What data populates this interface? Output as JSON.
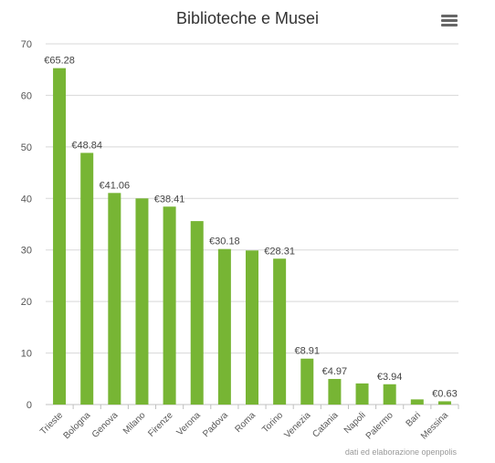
{
  "chart_data": {
    "type": "bar",
    "title": "Biblioteche e Musei",
    "categories": [
      "Trieste",
      "Bologna",
      "Genova",
      "Milano",
      "Firenze",
      "Verona",
      "Padova",
      "Roma",
      "Torino",
      "Venezia",
      "Catania",
      "Napoli",
      "Palermo",
      "Bari",
      "Messina"
    ],
    "values": [
      65.28,
      48.84,
      41.06,
      40.0,
      38.41,
      35.6,
      30.18,
      29.9,
      28.31,
      8.91,
      4.97,
      4.1,
      3.94,
      1.0,
      0.63
    ],
    "data_labels": [
      "€65.28",
      "€48.84",
      "€41.06",
      "",
      "€38.41",
      "",
      "€30.18",
      "",
      "€28.31",
      "€8.91",
      "€4.97",
      "",
      "€3.94",
      "",
      "€0.63"
    ],
    "y_ticks": [
      "0",
      "10",
      "20",
      "30",
      "40",
      "50",
      "60",
      "70"
    ],
    "ylim": [
      0,
      70
    ],
    "grid": true,
    "bar_color": "#77b534",
    "credit": "dati ed elaborazione openpolis"
  },
  "menu_icon": "hamburger-menu-icon"
}
